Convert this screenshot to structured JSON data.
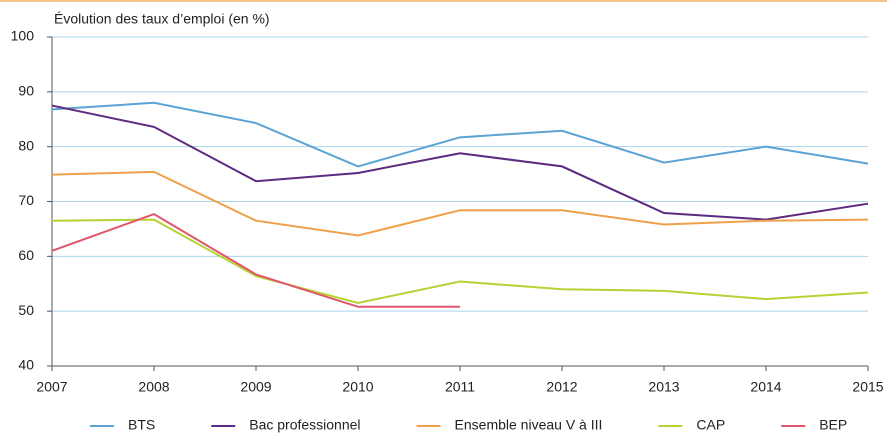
{
  "chart_data": {
    "type": "line",
    "title": "Évolution des taux d’emploi (en %)",
    "x": [
      2007,
      2008,
      2009,
      2010,
      2011,
      2012,
      2013,
      2014,
      2015
    ],
    "series": [
      {
        "name": "BTS",
        "color": "#5ba3d5",
        "values": [
          86.8,
          88,
          84.3,
          76.4,
          81.7,
          82.9,
          77.1,
          80,
          76.9
        ]
      },
      {
        "name": "Bac professionnel",
        "color": "#5c2a7e",
        "values": [
          87.5,
          83.6,
          73.7,
          75.2,
          78.8,
          76.4,
          67.9,
          66.7,
          69.6
        ]
      },
      {
        "name": "Ensemble niveau V à III",
        "color": "#f0a04b",
        "values": [
          74.9,
          75.4,
          66.5,
          63.8,
          68.4,
          68.4,
          65.8,
          66.5,
          66.7
        ]
      },
      {
        "name": "CAP",
        "color": "#b5d334",
        "values": [
          66.5,
          66.7,
          56.4,
          51.5,
          55.4,
          54,
          53.7,
          52.2,
          53.4
        ]
      },
      {
        "name": "BEP",
        "color": "#e0566a",
        "values": [
          61,
          67.7,
          56.7,
          50.8,
          50.8,
          null,
          null,
          null,
          null
        ]
      }
    ],
    "xlim": [
      2007,
      2015
    ],
    "xticks": [
      2007,
      2008,
      2009,
      2010,
      2011,
      2012,
      2013,
      2014,
      2015
    ],
    "ylim": [
      40,
      100
    ],
    "yticks": [
      40,
      50,
      60,
      70,
      80,
      90,
      100
    ],
    "grid": true,
    "legend": "bottom"
  }
}
